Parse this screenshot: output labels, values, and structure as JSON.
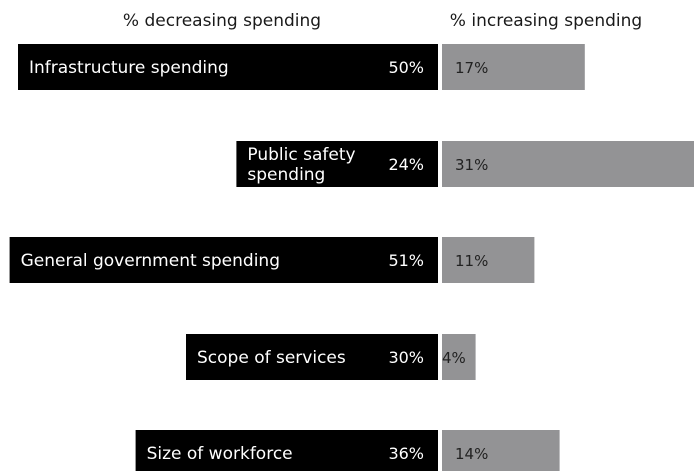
{
  "chart_data": {
    "type": "bar",
    "orientation": "horizontal-diverging",
    "headers": {
      "decreasing": "% decreasing spending",
      "increasing": "% increasing spending"
    },
    "categories": [
      [
        "Infrastructure spending"
      ],
      [
        "Public safety",
        "spending"
      ],
      [
        "General government spending"
      ],
      [
        "Scope of services"
      ],
      [
        "Size of workforce"
      ]
    ],
    "series": [
      {
        "key": "decreasing",
        "values": [
          50,
          24,
          51,
          30,
          36
        ],
        "labels": [
          "50%",
          "24%",
          "51%",
          "30%",
          "36%"
        ],
        "color": "#000000"
      },
      {
        "key": "increasing",
        "values": [
          17,
          31,
          11,
          4,
          14
        ],
        "labels": [
          "17%",
          "31%",
          "11%",
          "4%",
          "14%"
        ],
        "color": "#939395"
      }
    ],
    "grid": false,
    "legend": "none"
  }
}
